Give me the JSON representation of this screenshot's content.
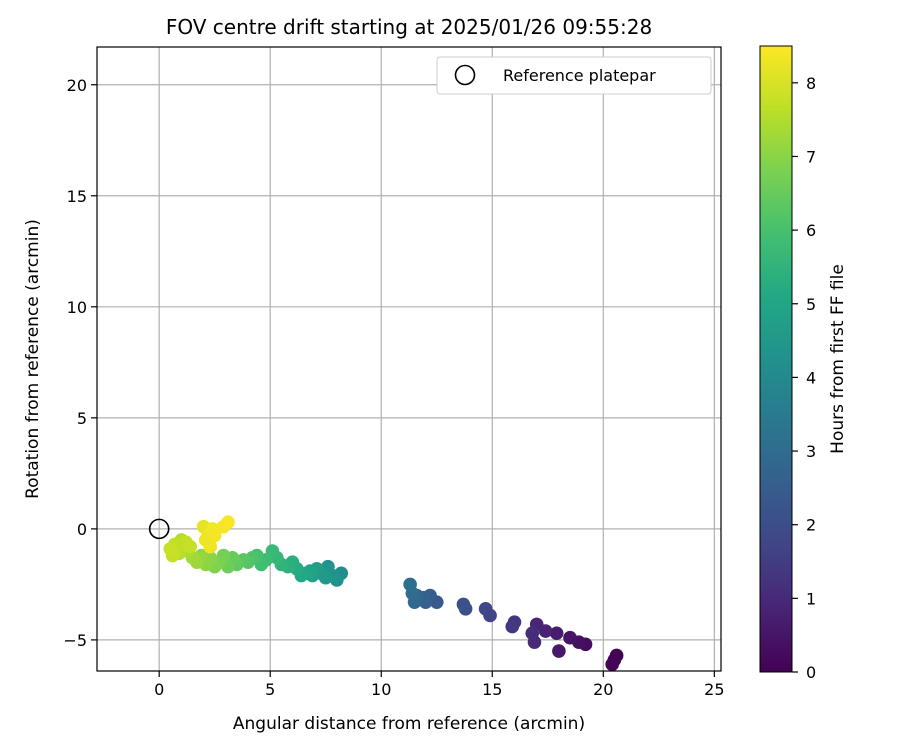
{
  "chart_data": {
    "type": "scatter",
    "title": "FOV centre drift starting at 2025/01/26 09:55:28",
    "xlabel": "Angular distance from reference (arcmin)",
    "ylabel": "Rotation from reference (arcmin)",
    "xlim": [
      -2.8,
      25.3
    ],
    "ylim": [
      -6.4,
      21.7
    ],
    "xticks": [
      0,
      5,
      10,
      15,
      20,
      25
    ],
    "yticks": [
      -5,
      0,
      5,
      10,
      15,
      20
    ],
    "grid": true,
    "legend": {
      "placement": "top-right",
      "label": "Reference platepar"
    },
    "reference_point": {
      "x": 0,
      "y": 0
    },
    "colorbar": {
      "label": "Hours from first FF file",
      "colormap": "viridis",
      "range": [
        0,
        8.5
      ],
      "ticks": [
        0,
        1,
        2,
        3,
        4,
        5,
        6,
        7,
        8
      ]
    },
    "points": [
      {
        "x": 20.6,
        "y": -5.7,
        "h": 0.0
      },
      {
        "x": 20.5,
        "y": -5.9,
        "h": 0.05
      },
      {
        "x": 20.4,
        "y": -6.1,
        "h": 0.1
      },
      {
        "x": 19.2,
        "y": -5.2,
        "h": 0.3
      },
      {
        "x": 18.9,
        "y": -5.1,
        "h": 0.35
      },
      {
        "x": 18.5,
        "y": -4.9,
        "h": 0.45
      },
      {
        "x": 18.0,
        "y": -5.5,
        "h": 0.55
      },
      {
        "x": 17.9,
        "y": -4.7,
        "h": 0.65
      },
      {
        "x": 17.4,
        "y": -4.6,
        "h": 0.8
      },
      {
        "x": 17.0,
        "y": -4.3,
        "h": 0.9
      },
      {
        "x": 16.9,
        "y": -5.1,
        "h": 1.0
      },
      {
        "x": 16.8,
        "y": -4.7,
        "h": 1.1
      },
      {
        "x": 16.0,
        "y": -4.2,
        "h": 1.3
      },
      {
        "x": 15.9,
        "y": -4.4,
        "h": 1.4
      },
      {
        "x": 14.9,
        "y": -3.9,
        "h": 1.7
      },
      {
        "x": 14.7,
        "y": -3.6,
        "h": 1.8
      },
      {
        "x": 13.8,
        "y": -3.6,
        "h": 2.0
      },
      {
        "x": 13.7,
        "y": -3.4,
        "h": 2.1
      },
      {
        "x": 12.5,
        "y": -3.3,
        "h": 2.4
      },
      {
        "x": 12.2,
        "y": -3.0,
        "h": 2.5
      },
      {
        "x": 12.0,
        "y": -3.3,
        "h": 2.6
      },
      {
        "x": 11.9,
        "y": -3.1,
        "h": 2.7
      },
      {
        "x": 11.6,
        "y": -3.0,
        "h": 2.8
      },
      {
        "x": 11.5,
        "y": -3.3,
        "h": 2.9
      },
      {
        "x": 11.4,
        "y": -2.9,
        "h": 3.0
      },
      {
        "x": 11.3,
        "y": -2.5,
        "h": 3.1
      },
      {
        "x": 8.2,
        "y": -2.0,
        "h": 4.1
      },
      {
        "x": 8.0,
        "y": -2.3,
        "h": 4.2
      },
      {
        "x": 7.8,
        "y": -2.1,
        "h": 4.3
      },
      {
        "x": 7.6,
        "y": -1.7,
        "h": 4.4
      },
      {
        "x": 7.5,
        "y": -2.2,
        "h": 4.5
      },
      {
        "x": 7.3,
        "y": -2.0,
        "h": 4.6
      },
      {
        "x": 7.1,
        "y": -1.8,
        "h": 4.7
      },
      {
        "x": 6.9,
        "y": -2.1,
        "h": 4.8
      },
      {
        "x": 6.8,
        "y": -1.9,
        "h": 4.9
      },
      {
        "x": 6.6,
        "y": -2.0,
        "h": 5.0
      },
      {
        "x": 6.4,
        "y": -2.1,
        "h": 5.1
      },
      {
        "x": 6.2,
        "y": -1.8,
        "h": 5.2
      },
      {
        "x": 6.0,
        "y": -1.5,
        "h": 5.3
      },
      {
        "x": 5.8,
        "y": -1.7,
        "h": 5.4
      },
      {
        "x": 5.5,
        "y": -1.6,
        "h": 5.5
      },
      {
        "x": 5.3,
        "y": -1.3,
        "h": 5.6
      },
      {
        "x": 5.1,
        "y": -1.0,
        "h": 5.7
      },
      {
        "x": 4.8,
        "y": -1.4,
        "h": 5.8
      },
      {
        "x": 4.6,
        "y": -1.6,
        "h": 5.9
      },
      {
        "x": 4.4,
        "y": -1.2,
        "h": 6.0
      },
      {
        "x": 4.2,
        "y": -1.3,
        "h": 6.1
      },
      {
        "x": 4.0,
        "y": -1.5,
        "h": 6.2
      },
      {
        "x": 3.8,
        "y": -1.4,
        "h": 6.3
      },
      {
        "x": 3.5,
        "y": -1.6,
        "h": 6.4
      },
      {
        "x": 3.3,
        "y": -1.3,
        "h": 6.5
      },
      {
        "x": 3.1,
        "y": -1.7,
        "h": 6.6
      },
      {
        "x": 2.9,
        "y": -1.2,
        "h": 6.7
      },
      {
        "x": 2.7,
        "y": -1.5,
        "h": 6.8
      },
      {
        "x": 2.5,
        "y": -1.7,
        "h": 6.9
      },
      {
        "x": 2.3,
        "y": -1.3,
        "h": 7.0
      },
      {
        "x": 2.1,
        "y": -1.6,
        "h": 7.05
      },
      {
        "x": 1.9,
        "y": -1.2,
        "h": 7.1
      },
      {
        "x": 1.7,
        "y": -1.5,
        "h": 7.2
      },
      {
        "x": 1.5,
        "y": -1.3,
        "h": 7.3
      },
      {
        "x": 1.3,
        "y": -1.0,
        "h": 7.4
      },
      {
        "x": 1.1,
        "y": -0.8,
        "h": 7.5
      },
      {
        "x": 1.0,
        "y": -0.5,
        "h": 7.55
      },
      {
        "x": 0.9,
        "y": -1.1,
        "h": 7.6
      },
      {
        "x": 0.8,
        "y": -0.9,
        "h": 7.65
      },
      {
        "x": 0.7,
        "y": -0.7,
        "h": 7.7
      },
      {
        "x": 0.6,
        "y": -1.2,
        "h": 7.75
      },
      {
        "x": 0.5,
        "y": -0.9,
        "h": 7.8
      },
      {
        "x": 1.2,
        "y": -0.6,
        "h": 7.7
      },
      {
        "x": 1.4,
        "y": -0.8,
        "h": 7.75
      },
      {
        "x": 2.0,
        "y": 0.1,
        "h": 8.2
      },
      {
        "x": 2.2,
        "y": -0.3,
        "h": 8.25
      },
      {
        "x": 2.3,
        "y": -0.8,
        "h": 8.3
      },
      {
        "x": 2.4,
        "y": 0.0,
        "h": 8.35
      },
      {
        "x": 2.1,
        "y": -0.5,
        "h": 8.3
      },
      {
        "x": 2.9,
        "y": 0.1,
        "h": 8.4
      },
      {
        "x": 3.1,
        "y": 0.3,
        "h": 8.45
      },
      {
        "x": 2.5,
        "y": -0.3,
        "h": 8.4
      }
    ]
  }
}
